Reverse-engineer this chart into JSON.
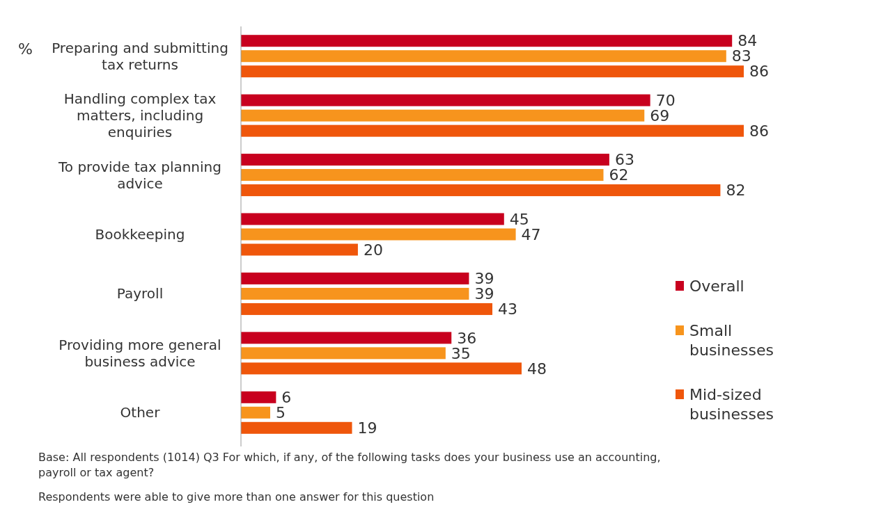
{
  "chart_data": {
    "type": "bar",
    "orientation": "horizontal",
    "ylabel": "%",
    "categories": [
      "Preparing and submitting tax returns",
      "Handling complex tax matters, including enquiries",
      "To provide tax planning advice",
      "Bookkeeping",
      "Payroll",
      "Providing more general business advice",
      "Other"
    ],
    "series": [
      {
        "name": "Overall",
        "color": "#c8001e",
        "values": [
          84,
          70,
          63,
          45,
          39,
          36,
          6
        ]
      },
      {
        "name": "Small businesses",
        "color": "#f7941d",
        "values": [
          83,
          69,
          62,
          47,
          39,
          35,
          5
        ]
      },
      {
        "name": "Mid-sized businesses",
        "color": "#ef560b",
        "values": [
          86,
          86,
          82,
          20,
          43,
          48,
          19
        ]
      }
    ],
    "tick_labels": "y",
    "data_labels": true,
    "legend": "right",
    "annotations": [
      "Base: All respondents (1014) Q3 For which, if any, of the following tasks does your business use an accounting, payroll or tax agent?",
      "Respondents were able to give more than one answer for this question"
    ]
  }
}
